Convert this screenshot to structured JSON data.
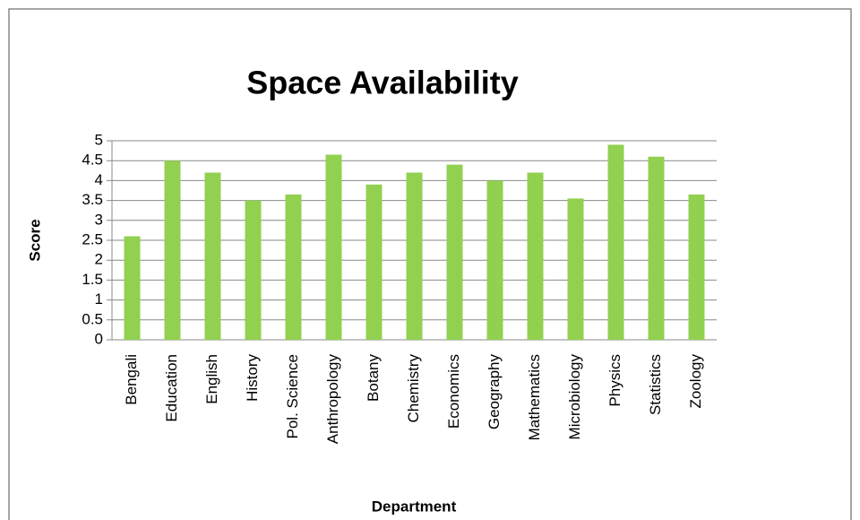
{
  "chart_data": {
    "type": "bar",
    "title": "Space Availability",
    "x_label": "Department",
    "y_label": "Score",
    "categories": [
      "Bengali",
      "Education",
      "English",
      "History",
      "Pol. Science",
      "Anthropology",
      "Botany",
      "Chemistry",
      "Economics",
      "Geography",
      "Mathematics",
      "Microbiology",
      "Physics",
      "Statistics",
      "Zoology"
    ],
    "values": [
      2.6,
      4.5,
      4.2,
      3.5,
      3.65,
      4.65,
      3.9,
      4.2,
      4.4,
      4.0,
      4.2,
      3.55,
      4.9,
      4.6,
      3.65
    ],
    "color": "#92d050",
    "ylim": [
      0,
      5
    ],
    "yticks": [
      0,
      0.5,
      1,
      1.5,
      2,
      2.5,
      3,
      3.5,
      4,
      4.5,
      5
    ],
    "grid": true
  }
}
